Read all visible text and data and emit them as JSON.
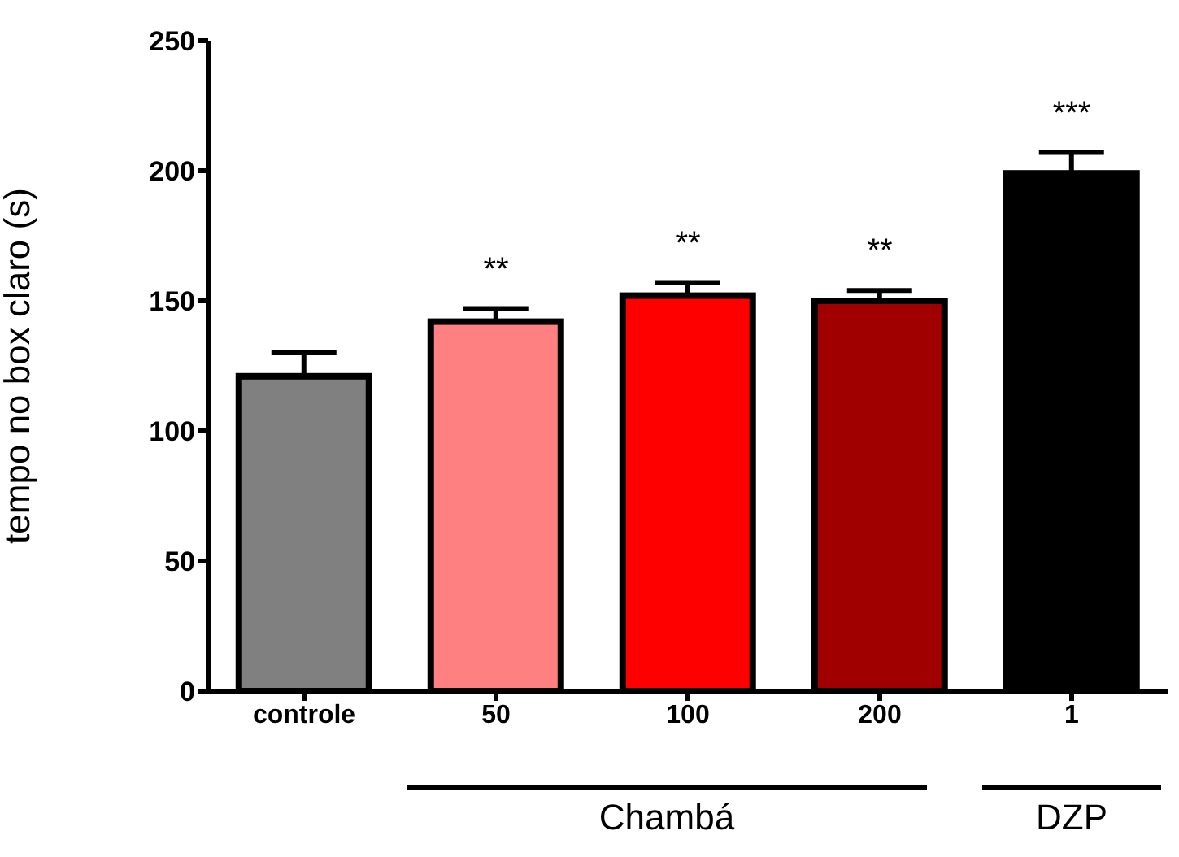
{
  "chart_data": {
    "type": "bar",
    "ylabel": "tempo no box claro (s)",
    "categories": [
      "controle",
      "50",
      "100",
      "200",
      "1"
    ],
    "values": [
      121,
      142,
      152,
      150,
      199
    ],
    "errors": [
      9,
      5,
      5,
      4,
      8
    ],
    "colors": [
      "#808080",
      "#ff8080",
      "#ff0000",
      "#a00000",
      "#000000"
    ],
    "ylim": [
      0,
      250
    ],
    "yticks": [
      0,
      50,
      100,
      150,
      200,
      250
    ],
    "annotations": [
      "Chambá",
      "DZP",
      "**",
      "**",
      "**",
      "***"
    ]
  }
}
